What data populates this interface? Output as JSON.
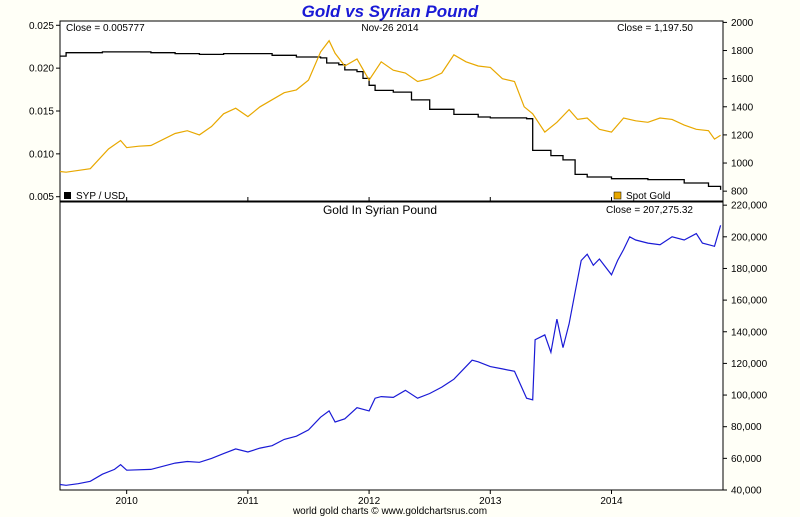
{
  "title": "Gold vs Syrian Pound",
  "footer": "world gold charts © www.goldchartsrus.com",
  "colors": {
    "syp": "#000000",
    "gold": "#e8a800",
    "gold_in_syp": "#1a1ad6",
    "background": "#fffff7",
    "plot_bg": "#ffffff"
  },
  "chart_data": [
    {
      "type": "line",
      "panel": "top",
      "title": "",
      "header_left": "Close = 0.005777",
      "header_center": "Nov-26 2014",
      "header_right": "Close = 1,197.50",
      "grid": false,
      "x_labels": [
        "2010",
        "2011",
        "2012",
        "2013",
        "2014"
      ],
      "y_left": {
        "ticks": [
          "0.025",
          "0.020",
          "0.015",
          "0.010",
          "0.005"
        ],
        "range": [
          0.0045,
          0.0255
        ]
      },
      "y_right": {
        "ticks": [
          "2000",
          "1800",
          "1600",
          "1400",
          "1200",
          "1000",
          "800"
        ],
        "range": [
          730,
          2010
        ]
      },
      "series": [
        {
          "name": "SYP / USD",
          "axis": "left",
          "legend_position": "bottom-left",
          "points": [
            [
              2009.45,
              0.0214
            ],
            [
              2009.5,
              0.0218
            ],
            [
              2009.7,
              0.0218
            ],
            [
              2009.8,
              0.0219
            ],
            [
              2010.0,
              0.0219
            ],
            [
              2010.2,
              0.0218
            ],
            [
              2010.4,
              0.0217
            ],
            [
              2010.6,
              0.0216
            ],
            [
              2010.8,
              0.0217
            ],
            [
              2011.0,
              0.0217
            ],
            [
              2011.2,
              0.0215
            ],
            [
              2011.4,
              0.0213
            ],
            [
              2011.6,
              0.0212
            ],
            [
              2011.65,
              0.0206
            ],
            [
              2011.75,
              0.0204
            ],
            [
              2011.8,
              0.0198
            ],
            [
              2011.9,
              0.0196
            ],
            [
              2011.95,
              0.0188
            ],
            [
              2012.0,
              0.018
            ],
            [
              2012.05,
              0.0174
            ],
            [
              2012.1,
              0.0174
            ],
            [
              2012.2,
              0.0172
            ],
            [
              2012.3,
              0.0172
            ],
            [
              2012.35,
              0.0163
            ],
            [
              2012.5,
              0.0152
            ],
            [
              2012.7,
              0.0146
            ],
            [
              2012.9,
              0.0143
            ],
            [
              2013.0,
              0.0142
            ],
            [
              2013.2,
              0.0142
            ],
            [
              2013.3,
              0.0141
            ],
            [
              2013.35,
              0.0104
            ],
            [
              2013.5,
              0.0098
            ],
            [
              2013.6,
              0.0093
            ],
            [
              2013.7,
              0.0076
            ],
            [
              2013.8,
              0.0073
            ],
            [
              2014.0,
              0.0071
            ],
            [
              2014.3,
              0.007
            ],
            [
              2014.6,
              0.0066
            ],
            [
              2014.8,
              0.0062
            ],
            [
              2014.9,
              0.0058
            ]
          ]
        },
        {
          "name": "Spot Gold",
          "axis": "right",
          "legend_position": "bottom-right",
          "points": [
            [
              2009.45,
              940
            ],
            [
              2009.5,
              935
            ],
            [
              2009.7,
              960
            ],
            [
              2009.85,
              1100
            ],
            [
              2009.95,
              1160
            ],
            [
              2010.0,
              1110
            ],
            [
              2010.1,
              1120
            ],
            [
              2010.2,
              1125
            ],
            [
              2010.4,
              1210
            ],
            [
              2010.5,
              1230
            ],
            [
              2010.6,
              1200
            ],
            [
              2010.7,
              1260
            ],
            [
              2010.8,
              1350
            ],
            [
              2010.9,
              1390
            ],
            [
              2011.0,
              1330
            ],
            [
              2011.1,
              1400
            ],
            [
              2011.3,
              1500
            ],
            [
              2011.4,
              1520
            ],
            [
              2011.5,
              1590
            ],
            [
              2011.6,
              1790
            ],
            [
              2011.67,
              1870
            ],
            [
              2011.72,
              1780
            ],
            [
              2011.8,
              1690
            ],
            [
              2011.9,
              1740
            ],
            [
              2012.0,
              1590
            ],
            [
              2012.1,
              1720
            ],
            [
              2012.2,
              1660
            ],
            [
              2012.3,
              1640
            ],
            [
              2012.4,
              1580
            ],
            [
              2012.5,
              1600
            ],
            [
              2012.6,
              1640
            ],
            [
              2012.7,
              1770
            ],
            [
              2012.8,
              1720
            ],
            [
              2012.9,
              1690
            ],
            [
              2013.0,
              1680
            ],
            [
              2013.1,
              1600
            ],
            [
              2013.2,
              1580
            ],
            [
              2013.28,
              1400
            ],
            [
              2013.35,
              1350
            ],
            [
              2013.45,
              1220
            ],
            [
              2013.55,
              1290
            ],
            [
              2013.65,
              1380
            ],
            [
              2013.72,
              1310
            ],
            [
              2013.8,
              1320
            ],
            [
              2013.9,
              1240
            ],
            [
              2014.0,
              1220
            ],
            [
              2014.1,
              1320
            ],
            [
              2014.2,
              1300
            ],
            [
              2014.3,
              1290
            ],
            [
              2014.4,
              1320
            ],
            [
              2014.5,
              1310
            ],
            [
              2014.6,
              1270
            ],
            [
              2014.7,
              1240
            ],
            [
              2014.8,
              1230
            ],
            [
              2014.85,
              1170
            ],
            [
              2014.9,
              1197.5
            ]
          ]
        }
      ]
    },
    {
      "type": "line",
      "panel": "bottom",
      "title": "Gold In Syrian Pound",
      "header_right": "Close = 207,275.32",
      "grid": false,
      "x_labels": [
        "2010",
        "2011",
        "2012",
        "2013",
        "2014"
      ],
      "y_right": {
        "ticks": [
          "220,000",
          "200,000",
          "180,000",
          "160,000",
          "140,000",
          "120,000",
          "100,000",
          "80,000",
          "60,000",
          "40,000"
        ],
        "range": [
          40000,
          222000
        ]
      },
      "series": [
        {
          "name": "",
          "axis": "right",
          "points": [
            [
              2009.45,
              43500
            ],
            [
              2009.5,
              43000
            ],
            [
              2009.6,
              44000
            ],
            [
              2009.7,
              45500
            ],
            [
              2009.8,
              50000
            ],
            [
              2009.9,
              53000
            ],
            [
              2009.95,
              56000
            ],
            [
              2010.0,
              52500
            ],
            [
              2010.2,
              53000
            ],
            [
              2010.4,
              57000
            ],
            [
              2010.5,
              58000
            ],
            [
              2010.6,
              57500
            ],
            [
              2010.7,
              60000
            ],
            [
              2010.8,
              63000
            ],
            [
              2010.9,
              66000
            ],
            [
              2011.0,
              64000
            ],
            [
              2011.1,
              66500
            ],
            [
              2011.2,
              68000
            ],
            [
              2011.3,
              72000
            ],
            [
              2011.4,
              74000
            ],
            [
              2011.5,
              78000
            ],
            [
              2011.6,
              86000
            ],
            [
              2011.67,
              90000
            ],
            [
              2011.72,
              83000
            ],
            [
              2011.8,
              85000
            ],
            [
              2011.9,
              92000
            ],
            [
              2012.0,
              90000
            ],
            [
              2012.05,
              98000
            ],
            [
              2012.1,
              99000
            ],
            [
              2012.2,
              98500
            ],
            [
              2012.3,
              103000
            ],
            [
              2012.4,
              98000
            ],
            [
              2012.5,
              101000
            ],
            [
              2012.6,
              105000
            ],
            [
              2012.7,
              110000
            ],
            [
              2012.8,
              118000
            ],
            [
              2012.85,
              122000
            ],
            [
              2012.9,
              121000
            ],
            [
              2013.0,
              118000
            ],
            [
              2013.1,
              116500
            ],
            [
              2013.2,
              115000
            ],
            [
              2013.3,
              98000
            ],
            [
              2013.35,
              97000
            ],
            [
              2013.37,
              135000
            ],
            [
              2013.45,
              138000
            ],
            [
              2013.5,
              127000
            ],
            [
              2013.55,
              148000
            ],
            [
              2013.6,
              130000
            ],
            [
              2013.65,
              145000
            ],
            [
              2013.7,
              165000
            ],
            [
              2013.75,
              185000
            ],
            [
              2013.8,
              189000
            ],
            [
              2013.85,
              182000
            ],
            [
              2013.9,
              186000
            ],
            [
              2014.0,
              176000
            ],
            [
              2014.05,
              185000
            ],
            [
              2014.1,
              192000
            ],
            [
              2014.15,
              200000
            ],
            [
              2014.2,
              198000
            ],
            [
              2014.3,
              196000
            ],
            [
              2014.4,
              195000
            ],
            [
              2014.5,
              200000
            ],
            [
              2014.6,
              198000
            ],
            [
              2014.7,
              202000
            ],
            [
              2014.75,
              196000
            ],
            [
              2014.8,
              195000
            ],
            [
              2014.85,
              194000
            ],
            [
              2014.88,
              202000
            ],
            [
              2014.9,
              207275.32
            ]
          ]
        }
      ]
    }
  ]
}
